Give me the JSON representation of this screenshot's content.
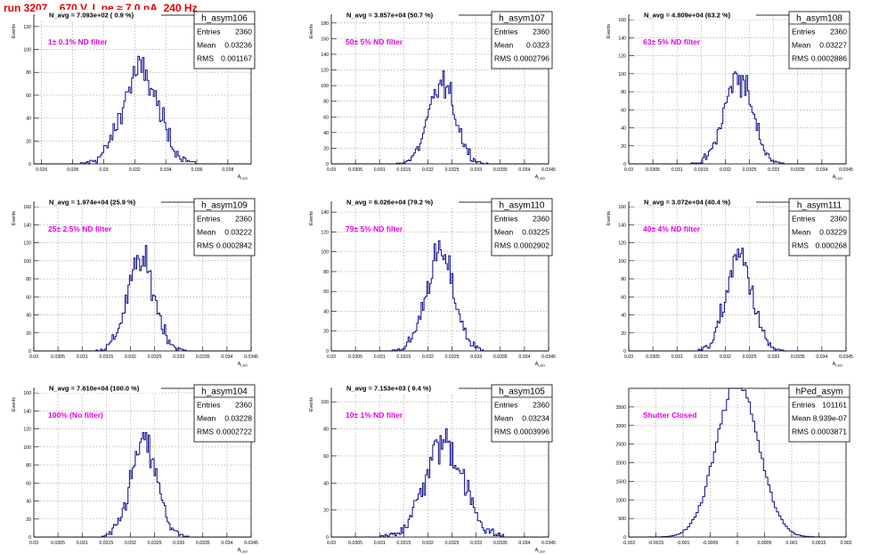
{
  "canvas_title": "run 3207,   670 V, I_pe ≈ 7.0 nA, 240 Hz",
  "colors": {
    "hist": "#0a0a8c",
    "annotation": "#e000e0",
    "title": "#e00000",
    "grid": "#999999"
  },
  "chart_data": [
    {
      "type": "histogram",
      "name": "h_asym106",
      "stats": {
        "entries": "2360",
        "mean": "0.03236",
        "rms": "0.001167"
      },
      "n_avg": "N_avg = 7.093e+02 ( 0.9 %)",
      "annotation": "1± 0.1% ND filter",
      "xlabel": "A_LED",
      "ylabel": "Events",
      "xlim": [
        0.0255,
        0.0395
      ],
      "xticks": [
        "0.026",
        "0.028",
        "0.03",
        "0.032",
        "0.034",
        "0.036",
        "0.038"
      ],
      "xtick_values": [
        0.026,
        0.028,
        0.03,
        0.032,
        0.034,
        0.036,
        0.038
      ],
      "ylim": [
        0,
        130
      ],
      "yticks": [
        "0",
        "20",
        "40",
        "60",
        "80",
        "100",
        "120"
      ],
      "ytick_values": [
        0,
        20,
        40,
        60,
        80,
        100,
        120
      ],
      "distribution": {
        "mean": 0.03236,
        "rms": 0.001167,
        "entries": 2360,
        "bin_width": 0.0001
      }
    },
    {
      "type": "histogram",
      "name": "h_asym107",
      "stats": {
        "entries": "2360",
        "mean": "0.0323",
        "rms": "0.0002796"
      },
      "n_avg": "N_avg = 3.857e+04 (50.7 %)",
      "annotation": "50± 5% ND filter",
      "xlabel": "A_LED",
      "ylabel": "Events",
      "xlim": [
        0.03,
        0.0345
      ],
      "xticks": [
        "0.03",
        "0.0305",
        "0.031",
        "0.0315",
        "0.032",
        "0.0325",
        "0.033",
        "0.0335",
        "0.034",
        "0.0345"
      ],
      "xtick_values": [
        0.03,
        0.0305,
        0.031,
        0.0315,
        0.032,
        0.0325,
        0.033,
        0.0335,
        0.034,
        0.0345
      ],
      "ylim": [
        0,
        190
      ],
      "yticks": [
        "0",
        "20",
        "40",
        "60",
        "80",
        "100",
        "120",
        "140",
        "160",
        "180"
      ],
      "ytick_values": [
        0,
        20,
        40,
        60,
        80,
        100,
        120,
        140,
        160,
        180
      ],
      "distribution": {
        "mean": 0.0323,
        "rms": 0.0002796,
        "entries": 2360,
        "bin_width": 3e-05
      }
    },
    {
      "type": "histogram",
      "name": "h_asym108",
      "stats": {
        "entries": "2360",
        "mean": "0.03227",
        "rms": "0.0002886"
      },
      "n_avg": "N_avg = 4.809e+04 (63.2 %)",
      "annotation": "63± 5% ND filter",
      "xlabel": "A_LED",
      "ylabel": "Events",
      "xlim": [
        0.03,
        0.0345
      ],
      "xticks": [
        "0.03",
        "0.0305",
        "0.031",
        "0.0315",
        "0.032",
        "0.0325",
        "0.033",
        "0.0335",
        "0.034",
        "0.0345"
      ],
      "xtick_values": [
        0.03,
        0.0305,
        0.031,
        0.0315,
        0.032,
        0.0325,
        0.033,
        0.0335,
        0.034,
        0.0345
      ],
      "ylim": [
        0,
        165
      ],
      "yticks": [
        "0",
        "20",
        "40",
        "60",
        "80",
        "100",
        "120",
        "140",
        "160"
      ],
      "ytick_values": [
        0,
        20,
        40,
        60,
        80,
        100,
        120,
        140,
        160
      ],
      "distribution": {
        "mean": 0.03227,
        "rms": 0.0002886,
        "entries": 2360,
        "bin_width": 3e-05
      }
    },
    {
      "type": "histogram",
      "name": "h_asym109",
      "stats": {
        "entries": "2360",
        "mean": "0.03222",
        "rms": "0.0002842"
      },
      "n_avg": "N_avg = 1.974e+04 (25.9 %)",
      "annotation": "25± 2.5% ND filter",
      "xlabel": "A_LED",
      "ylabel": "Events",
      "xlim": [
        0.03,
        0.0345
      ],
      "xticks": [
        "0.03",
        "0.0305",
        "0.031",
        "0.0315",
        "0.032",
        "0.0325",
        "0.033",
        "0.0335",
        "0.034",
        "0.0345"
      ],
      "xtick_values": [
        0.03,
        0.0305,
        0.031,
        0.0315,
        0.032,
        0.0325,
        0.033,
        0.0335,
        0.034,
        0.0345
      ],
      "ylim": [
        0,
        165
      ],
      "yticks": [
        "0",
        "20",
        "40",
        "60",
        "80",
        "100",
        "120",
        "140",
        "160"
      ],
      "ytick_values": [
        0,
        20,
        40,
        60,
        80,
        100,
        120,
        140,
        160
      ],
      "distribution": {
        "mean": 0.03222,
        "rms": 0.0002842,
        "entries": 2360,
        "bin_width": 3e-05
      }
    },
    {
      "type": "histogram",
      "name": "h_asym110",
      "stats": {
        "entries": "2360",
        "mean": "0.03225",
        "rms": "0.0002902"
      },
      "n_avg": "N_avg = 6.026e+04 (79.2 %)",
      "annotation": "79± 5% ND filter",
      "xlabel": "A_LED",
      "ylabel": "Events",
      "xlim": [
        0.03,
        0.0345
      ],
      "xticks": [
        "0.03",
        "0.0305",
        "0.031",
        "0.0315",
        "0.032",
        "0.0325",
        "0.033",
        "0.0335",
        "0.034",
        "0.0345"
      ],
      "xtick_values": [
        0.03,
        0.0305,
        0.031,
        0.0315,
        0.032,
        0.0325,
        0.033,
        0.0335,
        0.034,
        0.0345
      ],
      "ylim": [
        0,
        150
      ],
      "yticks": [
        "0",
        "20",
        "40",
        "60",
        "80",
        "100",
        "120",
        "140"
      ],
      "ytick_values": [
        0,
        20,
        40,
        60,
        80,
        100,
        120,
        140
      ],
      "distribution": {
        "mean": 0.03225,
        "rms": 0.0002902,
        "entries": 2360,
        "bin_width": 3e-05
      }
    },
    {
      "type": "histogram",
      "name": "h_asym111",
      "stats": {
        "entries": "2360",
        "mean": "0.03229",
        "rms": "0.000268"
      },
      "n_avg": "N_avg = 3.072e+04 (40.4 %)",
      "annotation": "40± 4% ND filter",
      "xlabel": "A_LED",
      "ylabel": "Events",
      "xlim": [
        0.03,
        0.0345
      ],
      "xticks": [
        "0.03",
        "0.0305",
        "0.031",
        "0.0315",
        "0.032",
        "0.0325",
        "0.033",
        "0.0335",
        "0.034",
        "0.0345"
      ],
      "xtick_values": [
        0.03,
        0.0305,
        0.031,
        0.0315,
        0.032,
        0.0325,
        0.033,
        0.0335,
        0.034,
        0.0345
      ],
      "ylim": [
        0,
        165
      ],
      "yticks": [
        "0",
        "20",
        "40",
        "60",
        "80",
        "100",
        "120",
        "140",
        "160"
      ],
      "ytick_values": [
        0,
        20,
        40,
        60,
        80,
        100,
        120,
        140,
        160
      ],
      "distribution": {
        "mean": 0.03229,
        "rms": 0.000268,
        "entries": 2360,
        "bin_width": 3e-05
      }
    },
    {
      "type": "histogram",
      "name": "h_asym104",
      "stats": {
        "entries": "2360",
        "mean": "0.03228",
        "rms": "0.0002722"
      },
      "n_avg": "N_avg = 7.610e+04 (100.0 %)",
      "annotation": "100% (No filter)",
      "xlabel": "A_LED",
      "ylabel": "Events",
      "xlim": [
        0.03,
        0.0345
      ],
      "xticks": [
        "0.03",
        "0.0305",
        "0.031",
        "0.0315",
        "0.032",
        "0.0325",
        "0.033",
        "0.0335",
        "0.034",
        "0.0345"
      ],
      "xtick_values": [
        0.03,
        0.0305,
        0.031,
        0.0315,
        0.032,
        0.0325,
        0.033,
        0.0335,
        0.034,
        0.0345
      ],
      "ylim": [
        0,
        165
      ],
      "yticks": [
        "0",
        "20",
        "40",
        "60",
        "80",
        "100",
        "120",
        "140",
        "160"
      ],
      "ytick_values": [
        0,
        20,
        40,
        60,
        80,
        100,
        120,
        140,
        160
      ],
      "distribution": {
        "mean": 0.03228,
        "rms": 0.0002722,
        "entries": 2360,
        "bin_width": 3e-05
      }
    },
    {
      "type": "histogram",
      "name": "h_asym105",
      "stats": {
        "entries": "2360",
        "mean": "0.03234",
        "rms": "0.0003996"
      },
      "n_avg": "N_avg = 7.153e+03 ( 9.4 %)",
      "annotation": "10± 1% ND filter",
      "xlabel": "A_LED",
      "ylabel": "Events",
      "xlim": [
        0.03,
        0.0345
      ],
      "xticks": [
        "0.03",
        "0.0305",
        "0.031",
        "0.0315",
        "0.032",
        "0.0325",
        "0.033",
        "0.0335",
        "0.034",
        "0.0345"
      ],
      "xtick_values": [
        0.03,
        0.0305,
        0.031,
        0.0315,
        0.032,
        0.0325,
        0.033,
        0.0335,
        0.034,
        0.0345
      ],
      "ylim": [
        0,
        110
      ],
      "yticks": [
        "0",
        "20",
        "40",
        "60",
        "80",
        "100"
      ],
      "ytick_values": [
        0,
        20,
        40,
        60,
        80,
        100
      ],
      "distribution": {
        "mean": 0.03234,
        "rms": 0.0003996,
        "entries": 2360,
        "bin_width": 3e-05
      }
    },
    {
      "type": "histogram",
      "name": "hPed_asym",
      "stats": {
        "entries": "101161",
        "mean": "8.939e-07",
        "rms": "0.0003871"
      },
      "annotation": "Shutter Closed",
      "xlabel": "",
      "ylabel": "",
      "xlim": [
        -0.002,
        0.002
      ],
      "xticks": [
        "-0.002",
        "-0.0015",
        "-0.001",
        "-0.0005",
        "0",
        "0.0005",
        "0.001",
        "0.0015",
        "0.002"
      ],
      "xtick_values": [
        -0.002,
        -0.0015,
        -0.001,
        -0.0005,
        0,
        0.0005,
        0.001,
        0.0015,
        0.002
      ],
      "ylim": [
        0,
        4000
      ],
      "yticks": [
        "0",
        "500",
        "1000",
        "1500",
        "2000",
        "2500",
        "3000",
        "3500"
      ],
      "ytick_values": [
        0,
        500,
        1000,
        1500,
        2000,
        2500,
        3000,
        3500
      ],
      "distribution": {
        "mean": 8.939e-07,
        "rms": 0.0003871,
        "entries": 101161,
        "bin_width": 4e-05
      }
    }
  ]
}
